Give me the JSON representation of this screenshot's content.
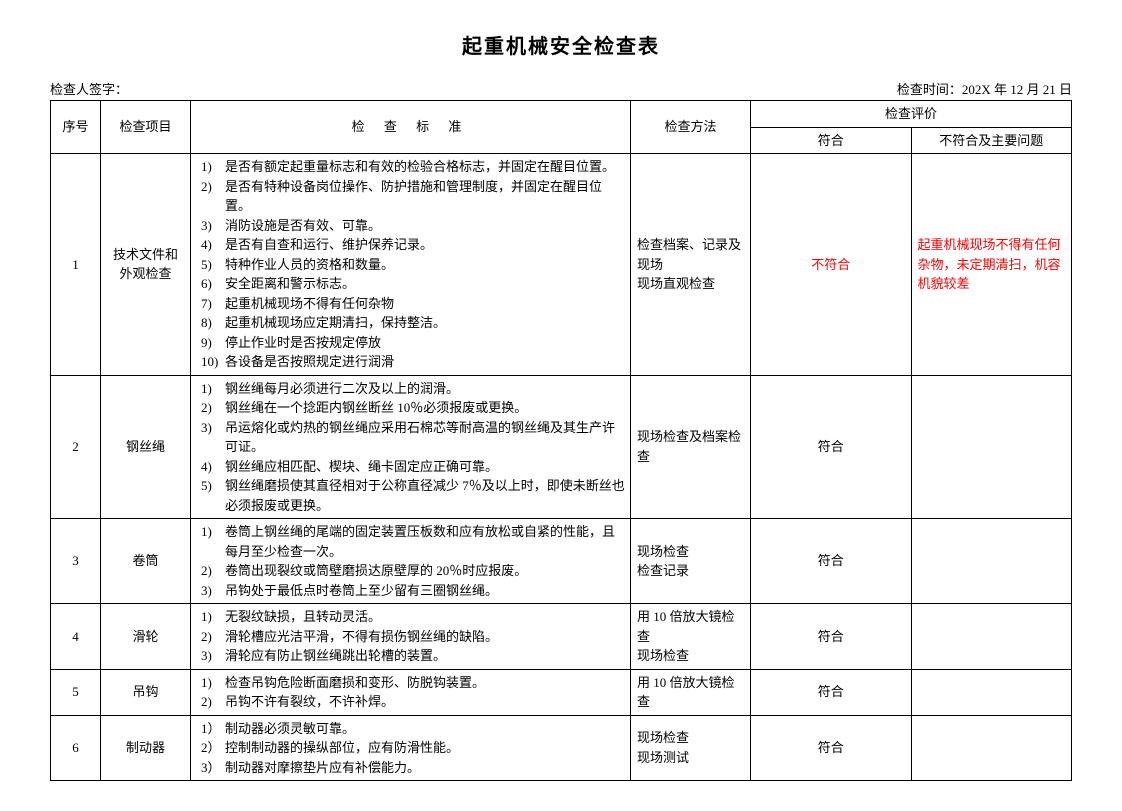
{
  "title": "起重机械安全检查表",
  "meta": {
    "signer_label": "检查人签字：",
    "date_label": "检查时间：202X 年 12 月 21 日"
  },
  "headers": {
    "seq": "序号",
    "item": "检查项目",
    "standard": "检 查 标 准",
    "method": "检查方法",
    "eval": "检查评价",
    "conform": "符合",
    "nonconform": "不符合及主要问题"
  },
  "rows": [
    {
      "seq": "1",
      "item": "技术文件和外观检查",
      "standards": [
        {
          "n": "1)",
          "t": "是否有额定起重量标志和有效的检验合格标志，并固定在醒目位置。"
        },
        {
          "n": "2)",
          "t": "是否有特种设备岗位操作、防护措施和管理制度，并固定在醒目位置。"
        },
        {
          "n": "3)",
          "t": "消防设施是否有效、可靠。"
        },
        {
          "n": "4)",
          "t": "是否有自查和运行、维护保养记录。"
        },
        {
          "n": "5)",
          "t": "特种作业人员的资格和数量。"
        },
        {
          "n": "6)",
          "t": "安全距离和警示标志。"
        },
        {
          "n": "7)",
          "t": "起重机械现场不得有任何杂物"
        },
        {
          "n": "8)",
          "t": "起重机械现场应定期清扫，保持整洁。"
        },
        {
          "n": "9)",
          "t": "停止作业时是否按规定停放"
        },
        {
          "n": "10)",
          "t": "各设备是否按照规定进行润滑"
        }
      ],
      "method": "检查档案、记录及现场\n现场直观检查",
      "conform": "不符合",
      "conform_red": true,
      "nonconform": "起重机械现场不得有任何杂物，未定期清扫，机容机貌较差",
      "nonconform_red": true
    },
    {
      "seq": "2",
      "item": "钢丝绳",
      "standards": [
        {
          "n": "1)",
          "t": "钢丝绳每月必须进行二次及以上的润滑。"
        },
        {
          "n": "2)",
          "t": "钢丝绳在一个捻距内钢丝断丝 10％必须报废或更换。"
        },
        {
          "n": "3)",
          "t": "吊运熔化或灼热的钢丝绳应采用石棉芯等耐高温的钢丝绳及其生产许可证。"
        },
        {
          "n": "4)",
          "t": "钢丝绳应相匹配、楔块、绳卡固定应正确可靠。"
        },
        {
          "n": "5)",
          "t": "钢丝绳磨损使其直径相对于公称直径减少 7％及以上时，即使未断丝也必须报废或更换。"
        }
      ],
      "method": "现场检查及档案检查",
      "conform": "符合",
      "conform_red": false,
      "nonconform": "",
      "nonconform_red": false
    },
    {
      "seq": "3",
      "item": "卷筒",
      "standards": [
        {
          "n": "1)",
          "t": "卷筒上钢丝绳的尾端的固定装置压板数和应有放松或自紧的性能，且每月至少检查一次。"
        },
        {
          "n": "2)",
          "t": "卷筒出现裂纹或筒壁磨损达原壁厚的 20％时应报废。"
        },
        {
          "n": "3)",
          "t": "吊钩处于最低点时卷筒上至少留有三圈钢丝绳。"
        }
      ],
      "method": "现场检查\n检查记录",
      "conform": "符合",
      "conform_red": false,
      "nonconform": "",
      "nonconform_red": false
    },
    {
      "seq": "4",
      "item": "滑轮",
      "standards": [
        {
          "n": "1)",
          "t": "无裂纹缺损，且转动灵活。"
        },
        {
          "n": "2)",
          "t": "滑轮槽应光洁平滑，不得有损伤钢丝绳的缺陷。"
        },
        {
          "n": "3)",
          "t": "滑轮应有防止钢丝绳跳出轮槽的装置。"
        }
      ],
      "method": "用 10 倍放大镜检查\n现场检查",
      "conform": "符合",
      "conform_red": false,
      "nonconform": "",
      "nonconform_red": false
    },
    {
      "seq": "5",
      "item": "吊钩",
      "standards": [
        {
          "n": "1)",
          "t": "检查吊钩危险断面磨损和变形、防脱钩装置。"
        },
        {
          "n": "2)",
          "t": "吊钩不许有裂纹，不许补焊。"
        }
      ],
      "method": "用 10 倍放大镜检查",
      "conform": "符合",
      "conform_red": false,
      "nonconform": "",
      "nonconform_red": false
    },
    {
      "seq": "6",
      "item": "制动器",
      "standards": [
        {
          "n": "1）",
          "t": "制动器必须灵敏可靠。"
        },
        {
          "n": "2）",
          "t": "控制制动器的操纵部位，应有防滑性能。"
        },
        {
          "n": "3）",
          "t": "制动器对摩擦垫片应有补偿能力。"
        }
      ],
      "method": "现场检查\n现场测试",
      "conform": "符合",
      "conform_red": false,
      "nonconform": "",
      "nonconform_red": false
    }
  ]
}
